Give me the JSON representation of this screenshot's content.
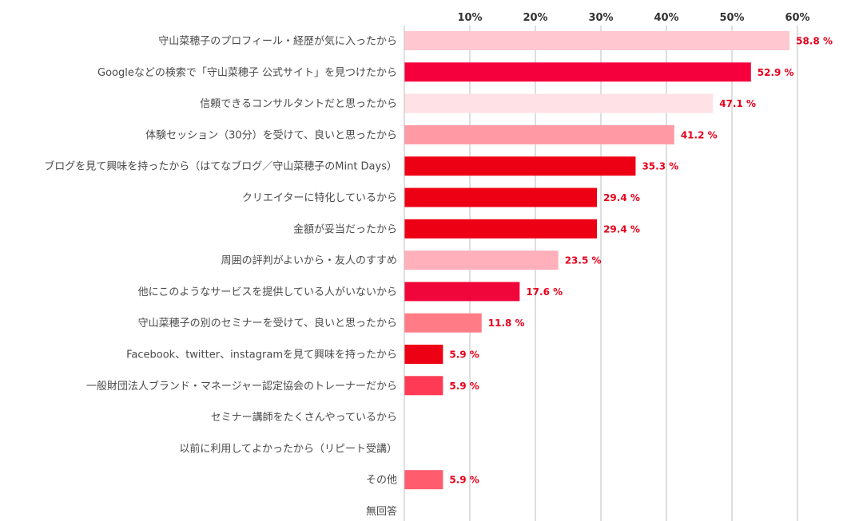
{
  "chart_data": {
    "type": "bar",
    "orientation": "horizontal",
    "categories": [
      "守山菜穂子のプロフィール・経歴が気に入ったから",
      "Googleなどの検索で「守山菜穂子 公式サイト」を見つけたから",
      "信頼できるコンサルタントだと思ったから",
      "体験セッション（30分）を受けて、良いと思ったから",
      "ブログを見て興味を持ったから（はてなブログ／守山菜穂子のMint Days）",
      "クリエイターに特化しているから",
      "金額が妥当だったから",
      "周囲の評判がよいから・友人のすすめ",
      "他にこのようなサービスを提供している人がいないから",
      "守山菜穂子の別のセミナーを受けて、良いと思ったから",
      "Facebook、twitter、instagramを見て興味を持ったから",
      "一般財団法人ブランド・マネージャー認定協会のトレーナーだから",
      "セミナー講師をたくさんやっているから",
      "以前に利用してよかったから（リピート受講）",
      "その他",
      "無回答"
    ],
    "values": [
      58.8,
      52.9,
      47.1,
      41.2,
      35.3,
      29.4,
      29.4,
      23.5,
      17.6,
      11.8,
      5.9,
      5.9,
      0,
      0,
      5.9,
      0
    ],
    "value_labels": [
      "58.8 %",
      "52.9 %",
      "47.1 %",
      "41.2 %",
      "35.3 %",
      "29.4 %",
      "29.4 %",
      "23.5 %",
      "17.6 %",
      "11.8 %",
      "5.9 %",
      "5.9 %",
      "",
      "",
      "5.9 %",
      ""
    ],
    "bar_colors": [
      "#ffc7cf",
      "#f5003c",
      "#ffe1e6",
      "#ff9aa5",
      "#ee0014",
      "#ee0014",
      "#ee0014",
      "#ffb0bb",
      "#f0063a",
      "#ff7c87",
      "#ee0014",
      "#ff3a55",
      "#ffffff",
      "#ffffff",
      "#ff5c6e",
      "#ffffff"
    ],
    "xlim": [
      0,
      60
    ],
    "ticks": [
      10,
      20,
      30,
      40,
      50,
      60
    ],
    "tick_labels": [
      "10%",
      "20%",
      "30%",
      "40%",
      "50%",
      "60%"
    ],
    "grid": true,
    "label_color": "#e8001c"
  }
}
